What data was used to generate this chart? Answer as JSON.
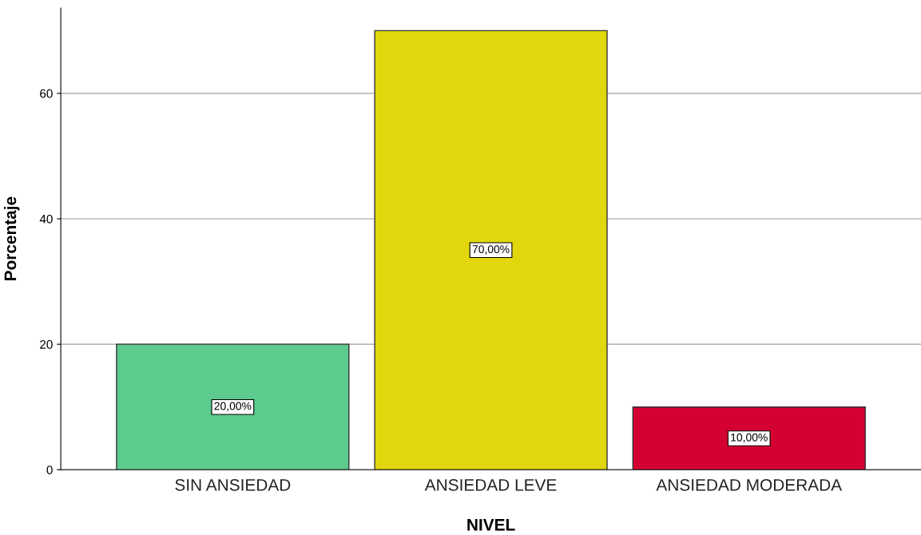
{
  "chart_data": {
    "type": "bar",
    "xlabel": "NIVEL",
    "ylabel": "Porcentaje",
    "categories": [
      "SIN ANSIEDAD",
      "ANSIEDAD LEVE",
      "ANSIEDAD MODERADA"
    ],
    "values": [
      20,
      70,
      10
    ],
    "colors": [
      "#5ccb8d",
      "#e1d70c",
      "#d50032"
    ],
    "value_labels": [
      "20,00%",
      "70,00%",
      "10,00%"
    ],
    "ylim": [
      0,
      73.6
    ],
    "yticks": [
      0,
      20,
      40,
      60
    ],
    "grid": "y"
  }
}
